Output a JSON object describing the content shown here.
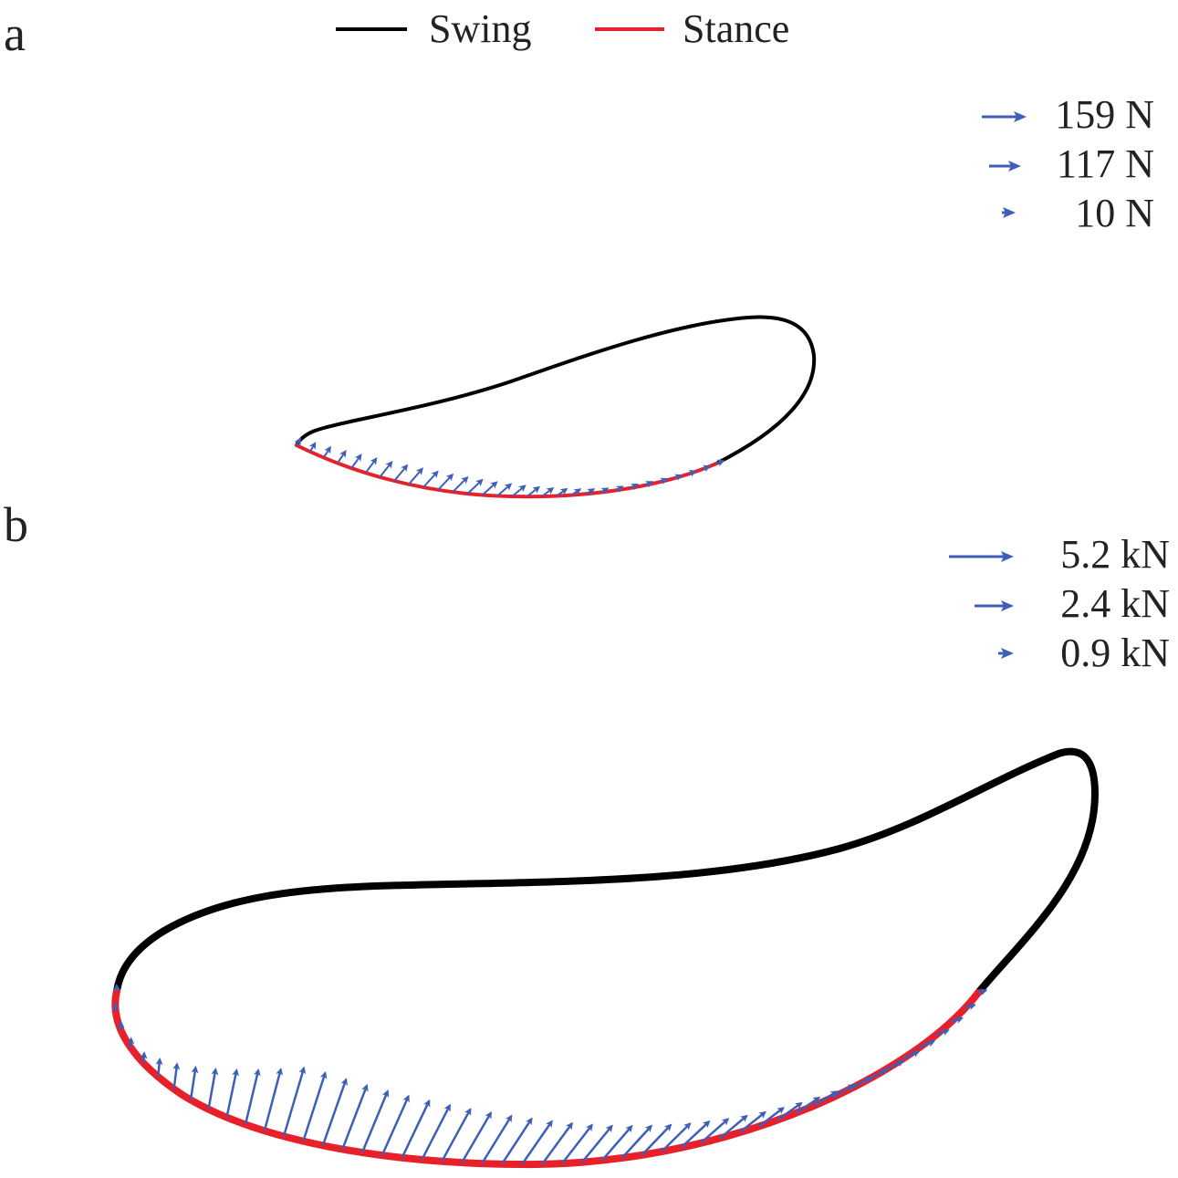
{
  "colors": {
    "swing": "#000000",
    "stance": "#e8202a",
    "force_arrow": "#3d5fb8",
    "text": "#222222",
    "background": "#ffffff"
  },
  "legend": {
    "swing_label": "Swing",
    "stance_label": "Stance"
  },
  "panel_a": {
    "label": "a",
    "force_scale": [
      {
        "value": "159 N"
      },
      {
        "value": "117 N"
      },
      {
        "value": "10 N"
      }
    ]
  },
  "panel_b": {
    "label": "b",
    "force_scale": [
      {
        "value": "5.2 kN"
      },
      {
        "value": "2.4 kN"
      },
      {
        "value": "0.9 kN"
      }
    ]
  },
  "icons": {
    "force_arrow": "force-arrow-icon"
  }
}
